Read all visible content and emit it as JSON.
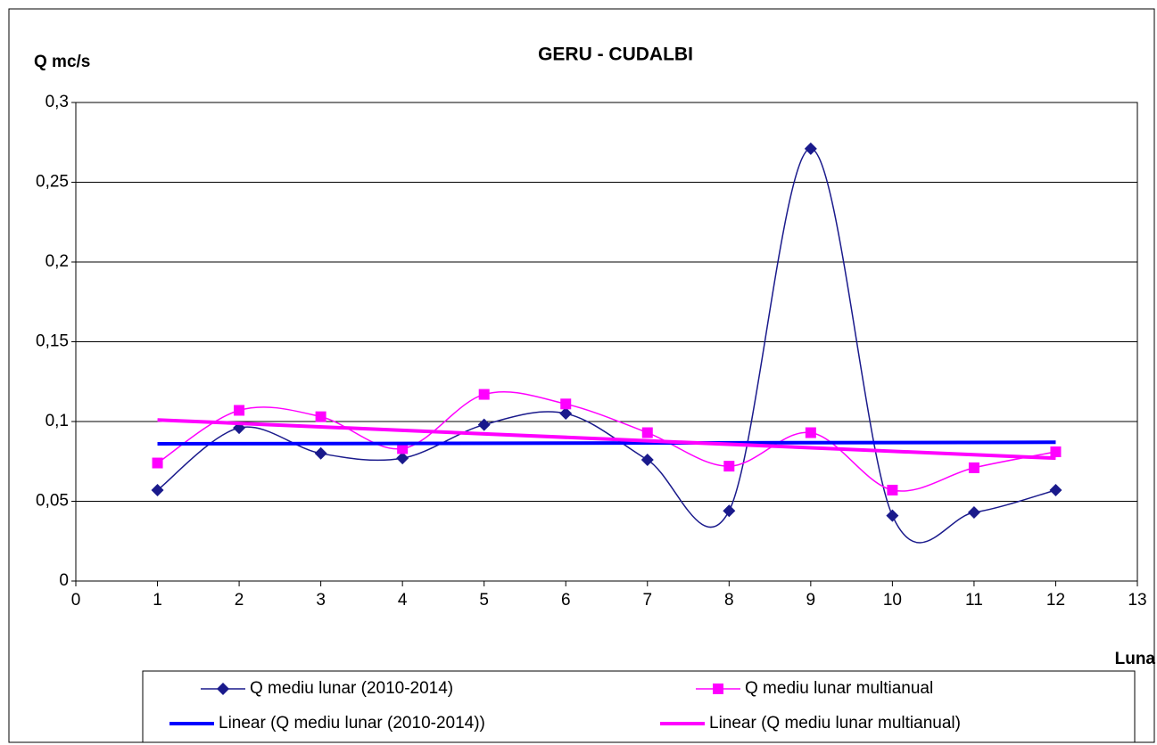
{
  "chart_data": {
    "type": "line",
    "title": "GERU -  CUDALBI",
    "y_label": "Q mc/s",
    "x_label": "Luna",
    "x": [
      1,
      2,
      3,
      4,
      5,
      6,
      7,
      8,
      9,
      10,
      11,
      12
    ],
    "series": [
      {
        "name": "Q mediu lunar (2010-2014)",
        "color": "#1a1a8c",
        "marker": "diamond",
        "values": [
          0.057,
          0.096,
          0.08,
          0.077,
          0.098,
          0.105,
          0.076,
          0.044,
          0.271,
          0.041,
          0.043,
          0.057
        ]
      },
      {
        "name": "Q mediu lunar multianual",
        "color": "#ff00ff",
        "marker": "square",
        "values": [
          0.074,
          0.107,
          0.103,
          0.083,
          0.117,
          0.111,
          0.093,
          0.072,
          0.093,
          0.057,
          0.071,
          0.081
        ]
      },
      {
        "name": "Linear (Q mediu lunar (2010-2014))",
        "color": "#0000ff",
        "trendline": true,
        "x": [
          1,
          12
        ],
        "values": [
          0.086,
          0.087
        ]
      },
      {
        "name": "Linear (Q mediu lunar multianual)",
        "color": "#ff00ff",
        "trendline": true,
        "x": [
          1,
          12
        ],
        "values": [
          0.101,
          0.077
        ]
      }
    ],
    "xlim": [
      0,
      13
    ],
    "xticks": [
      0,
      1,
      2,
      3,
      4,
      5,
      6,
      7,
      8,
      9,
      10,
      11,
      12,
      13
    ],
    "ylim": [
      0,
      0.3
    ],
    "yticks": [
      0,
      {
        "value": 0.05,
        "label": "0,05"
      },
      {
        "value": 0.1,
        "label": "0,1"
      },
      {
        "value": 0.15,
        "label": "0,15"
      },
      {
        "value": 0.2,
        "label": "0,2"
      },
      {
        "value": 0.25,
        "label": "0,25"
      },
      {
        "value": 0.3,
        "label": "0,3"
      }
    ],
    "grid": true,
    "legend": "bottom"
  }
}
